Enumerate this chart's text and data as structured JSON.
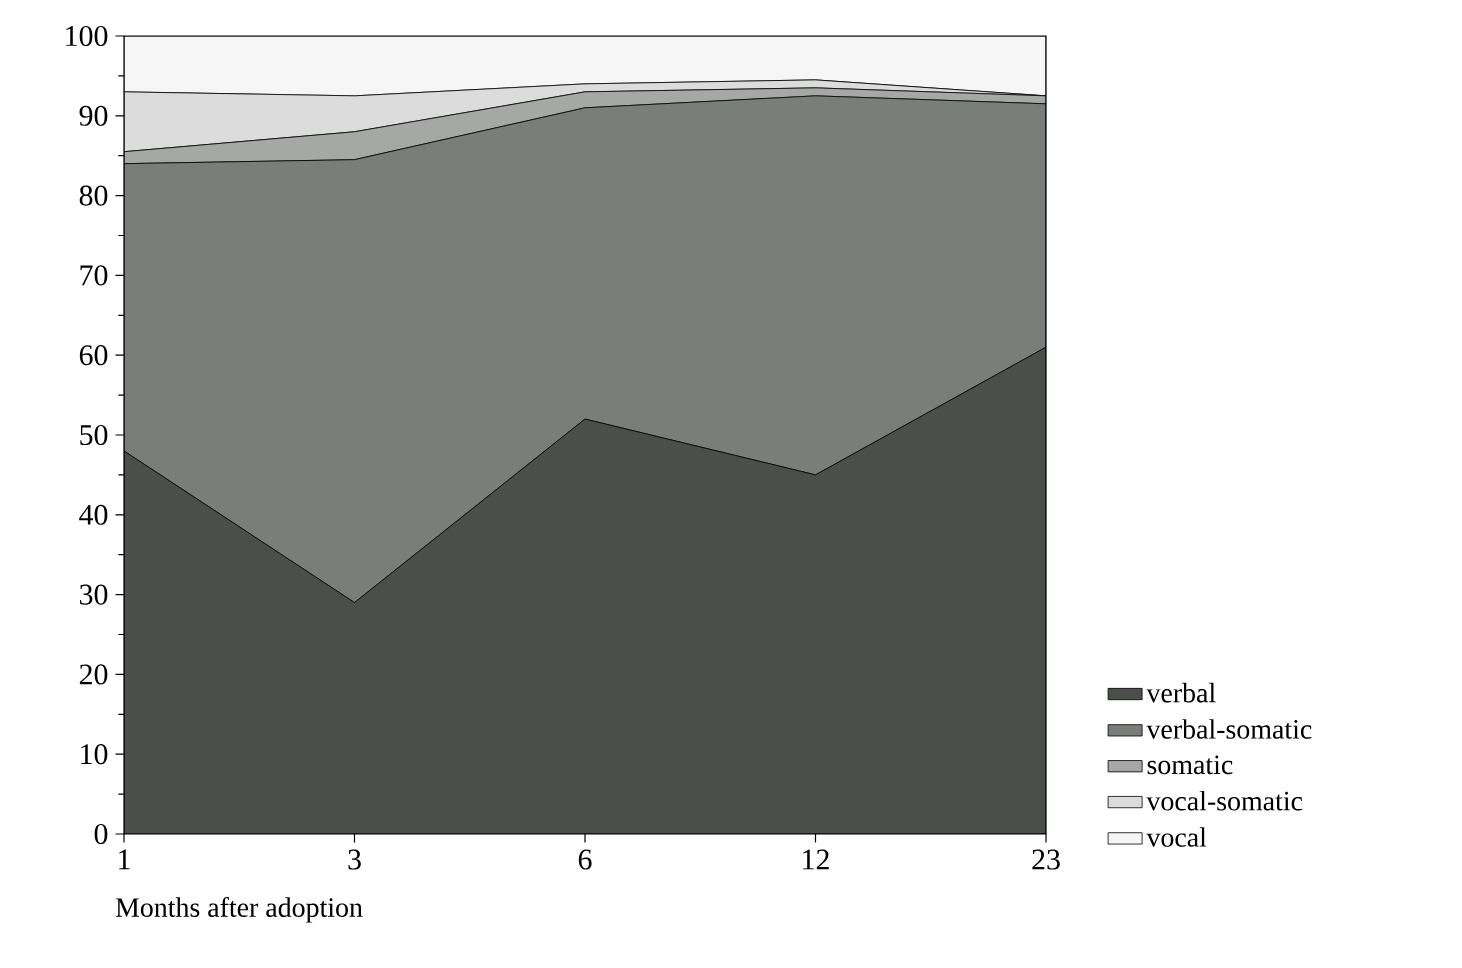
{
  "chart_data": {
    "type": "area",
    "stacked": true,
    "xlabel": "Months after adoption",
    "categories": [
      "1",
      "3",
      "6",
      "12",
      "23"
    ],
    "series": [
      {
        "name": "verbal",
        "color": "#4a4f4a",
        "values": [
          48,
          29,
          52,
          45,
          61
        ]
      },
      {
        "name": "verbal-somatic",
        "color": "#7a7e7a",
        "values": [
          36,
          55.5,
          39,
          47.5,
          30.5
        ]
      },
      {
        "name": "somatic",
        "color": "#a5a8a5",
        "values": [
          1.5,
          3.5,
          2,
          1,
          1
        ]
      },
      {
        "name": "vocal-somatic",
        "color": "#dcdcdc",
        "values": [
          7.5,
          4.5,
          1,
          1,
          0
        ]
      },
      {
        "name": "vocal",
        "color": "#f6f6f6",
        "values": [
          7,
          7.5,
          6,
          5.5,
          7.5
        ]
      }
    ],
    "ylim": [
      0,
      100
    ],
    "yticks": [
      0,
      10,
      20,
      30,
      40,
      50,
      60,
      70,
      80,
      90,
      100
    ],
    "grid": false,
    "legend": "right",
    "marker": "none"
  }
}
